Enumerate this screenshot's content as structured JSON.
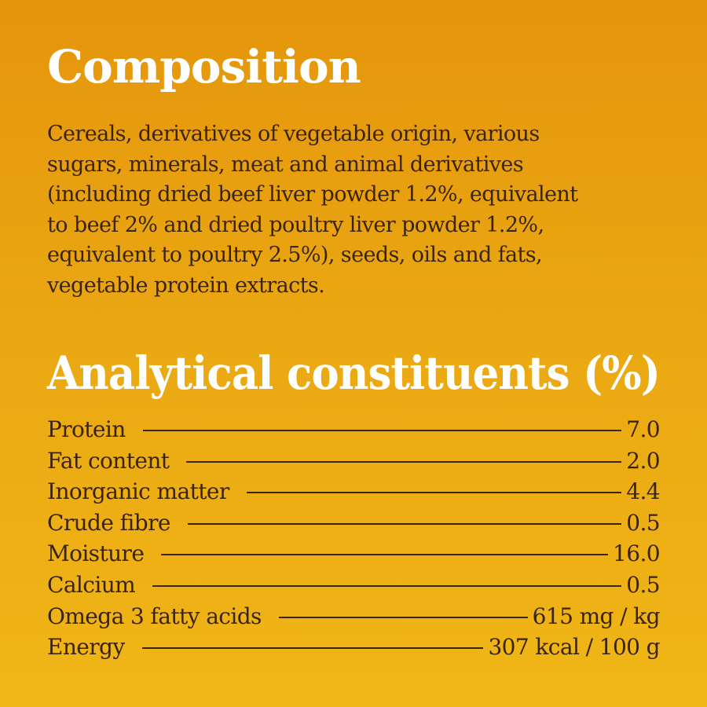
{
  "composition": {
    "heading": "Composition",
    "lines": [
      "Cereals, derivatives of vegetable origin, various",
      "sugars, minerals, meat and animal derivatives",
      "(including dried beef liver powder 1.2%, equivalent",
      "to beef 2% and dried poultry liver powder 1.2%,",
      "equivalent to poultry 2.5%), seeds, oils and fats,",
      "vegetable protein extracts."
    ]
  },
  "analytical": {
    "heading": "Analytical constituents (%)",
    "rows": [
      {
        "label": "Protein",
        "value": "7.0"
      },
      {
        "label": "Fat content",
        "value": "2.0"
      },
      {
        "label": "Inorganic matter",
        "value": "4.4"
      },
      {
        "label": "Crude fibre",
        "value": "0.5"
      },
      {
        "label": "Moisture",
        "value": "16.0"
      },
      {
        "label": "Calcium",
        "value": "0.5"
      },
      {
        "label": "Omega 3 fatty acids",
        "value": "615 mg / kg"
      },
      {
        "label": "Energy",
        "value": "307 kcal / 100 g"
      }
    ]
  },
  "colors": {
    "background_top": "#e5950c",
    "background_bottom": "#f0b617",
    "heading": "#ffffff",
    "body_text": "#3a2406"
  }
}
